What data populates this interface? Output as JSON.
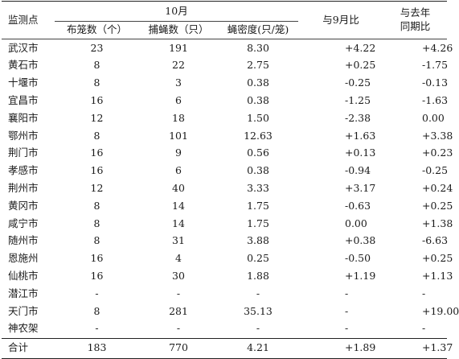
{
  "header": {
    "site": "监测点",
    "october": "10月",
    "traps": "布笼数（个）",
    "flies": "捕蝇数（只）",
    "density": "蝇密度(只/笼)",
    "vs_sep": "与9月比",
    "yoy_line1": "与去年",
    "yoy_line2": "同期比"
  },
  "rows": [
    {
      "site": "武汉市",
      "traps": "23",
      "flies": "191",
      "density": "8.30",
      "vs_sep": "+4.22",
      "yoy": "+4.26"
    },
    {
      "site": "黄石市",
      "traps": "8",
      "flies": "22",
      "density": "2.75",
      "vs_sep": "+0.25",
      "yoy": "-1.75"
    },
    {
      "site": "十堰市",
      "traps": "8",
      "flies": "3",
      "density": "0.38",
      "vs_sep": "-0.25",
      "yoy": "-0.13"
    },
    {
      "site": "宜昌市",
      "traps": "16",
      "flies": "6",
      "density": "0.38",
      "vs_sep": "-1.25",
      "yoy": "-1.63"
    },
    {
      "site": "襄阳市",
      "traps": "12",
      "flies": "18",
      "density": "1.50",
      "vs_sep": "-2.38",
      "yoy": "0.00"
    },
    {
      "site": "鄂州市",
      "traps": "8",
      "flies": "101",
      "density": "12.63",
      "vs_sep": "+1.63",
      "yoy": "+3.38"
    },
    {
      "site": "荆门市",
      "traps": "16",
      "flies": "9",
      "density": "0.56",
      "vs_sep": "+0.13",
      "yoy": "+0.23"
    },
    {
      "site": "孝感市",
      "traps": "16",
      "flies": "6",
      "density": "0.38",
      "vs_sep": "-0.94",
      "yoy": "-0.25"
    },
    {
      "site": "荆州市",
      "traps": "12",
      "flies": "40",
      "density": "3.33",
      "vs_sep": "+3.17",
      "yoy": "+0.24"
    },
    {
      "site": "黄冈市",
      "traps": "8",
      "flies": "14",
      "density": "1.75",
      "vs_sep": "-0.63",
      "yoy": "+0.25"
    },
    {
      "site": "咸宁市",
      "traps": "8",
      "flies": "14",
      "density": "1.75",
      "vs_sep": "0.00",
      "yoy": "+1.38"
    },
    {
      "site": "随州市",
      "traps": "8",
      "flies": "31",
      "density": "3.88",
      "vs_sep": "+0.38",
      "yoy": "-6.63"
    },
    {
      "site": "恩施州",
      "traps": "16",
      "flies": "4",
      "density": "0.25",
      "vs_sep": "-0.50",
      "yoy": "+0.25"
    },
    {
      "site": "仙桃市",
      "traps": "16",
      "flies": "30",
      "density": "1.88",
      "vs_sep": "+1.19",
      "yoy": "+1.13"
    },
    {
      "site": "潜江市",
      "traps": "-",
      "flies": "-",
      "density": "-",
      "vs_sep": "-",
      "yoy": "-"
    },
    {
      "site": "天门市",
      "traps": "8",
      "flies": "281",
      "density": "35.13",
      "vs_sep": "-",
      "yoy": "+19.00"
    },
    {
      "site": "神农架",
      "traps": "-",
      "flies": "-",
      "density": "-",
      "vs_sep": "-",
      "yoy": "-"
    }
  ],
  "total": {
    "site": "合计",
    "traps": "183",
    "flies": "770",
    "density": "4.21",
    "vs_sep": "+1.89",
    "yoy": "+1.37"
  }
}
